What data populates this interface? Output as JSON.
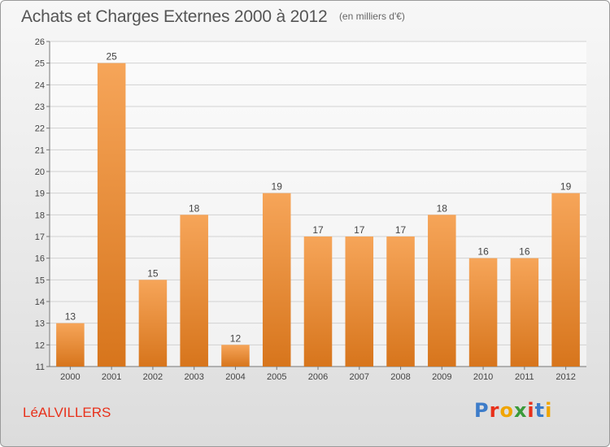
{
  "header": {
    "title": "Achats et Charges Externes 2000 à 2012",
    "subtitle": "(en milliers d'€)"
  },
  "footer": {
    "commune": "LéALVILLERS",
    "logo": "Proxiti",
    "logo_colors": [
      "#3d7cc9",
      "#e8301a",
      "#f0a500",
      "#3a9a3a",
      "#e8301a",
      "#3d7cc9",
      "#f0a500"
    ]
  },
  "colors": {
    "bar_top": "#f6a559",
    "bar_bottom": "#d7751c",
    "grid": "#d2d2d2",
    "axis": "#777777"
  },
  "chart_data": {
    "type": "bar",
    "title": "Achats et Charges Externes 2000 à 2012",
    "subtitle": "(en milliers d'€)",
    "categories": [
      "2000",
      "2001",
      "2002",
      "2003",
      "2004",
      "2005",
      "2006",
      "2007",
      "2008",
      "2009",
      "2010",
      "2011",
      "2012"
    ],
    "values": [
      13,
      25,
      15,
      18,
      12,
      19,
      17,
      17,
      17,
      18,
      16,
      16,
      19
    ],
    "ylim": [
      11,
      26
    ],
    "yticks": [
      11,
      12,
      13,
      14,
      15,
      16,
      17,
      18,
      19,
      20,
      21,
      22,
      23,
      24,
      25,
      26
    ],
    "grid": true,
    "data_labels": true
  }
}
